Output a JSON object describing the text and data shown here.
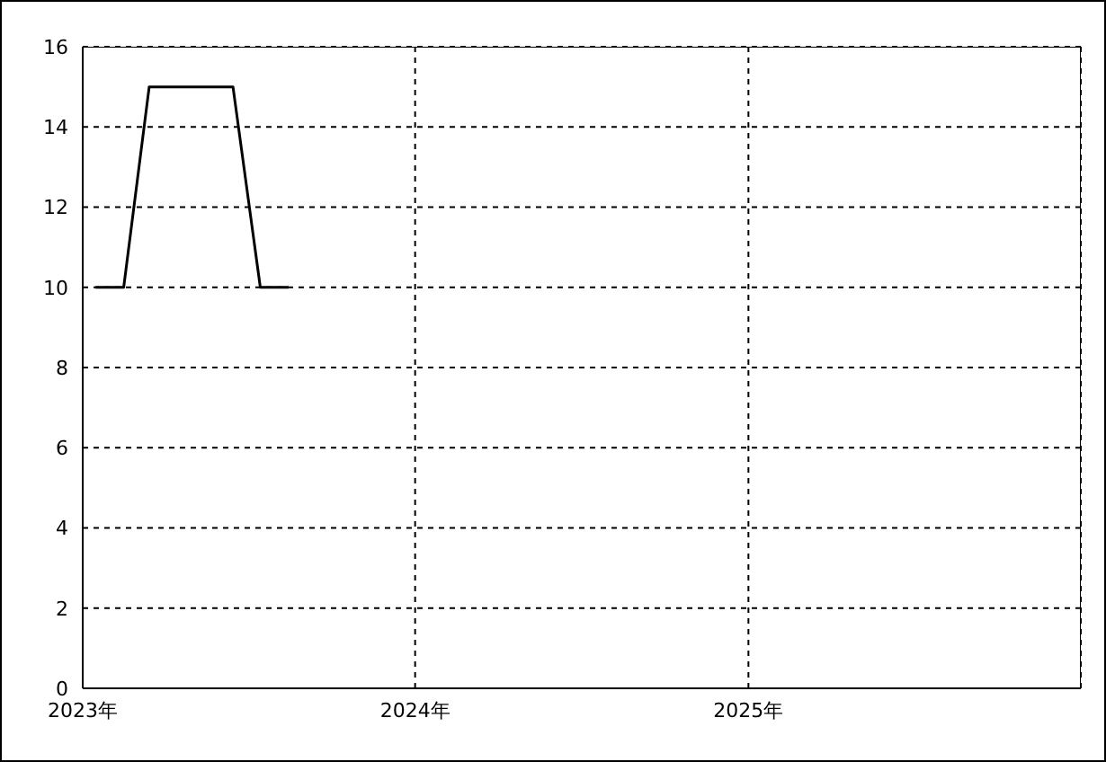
{
  "chart_data": {
    "type": "line",
    "x": [
      "2023-01-15",
      "2023-02-15",
      "2023-03-15",
      "2023-06-15",
      "2023-07-15",
      "2023-08-15"
    ],
    "series": [
      {
        "color": "#000000",
        "values": [
          10,
          10,
          15,
          15,
          10,
          10
        ]
      }
    ],
    "xlim": [
      "2023-01-01",
      "2026-01-01"
    ],
    "xticks": [
      {
        "value": "2023",
        "label": "2023年"
      },
      {
        "value": "2024",
        "label": "2024年"
      },
      {
        "value": "2025",
        "label": "2025年"
      }
    ],
    "ylim": [
      0,
      16
    ],
    "yticks": [
      0,
      2,
      4,
      6,
      8,
      10,
      12,
      14,
      16
    ],
    "grid": true,
    "marker": "none",
    "line_style": "solid"
  }
}
